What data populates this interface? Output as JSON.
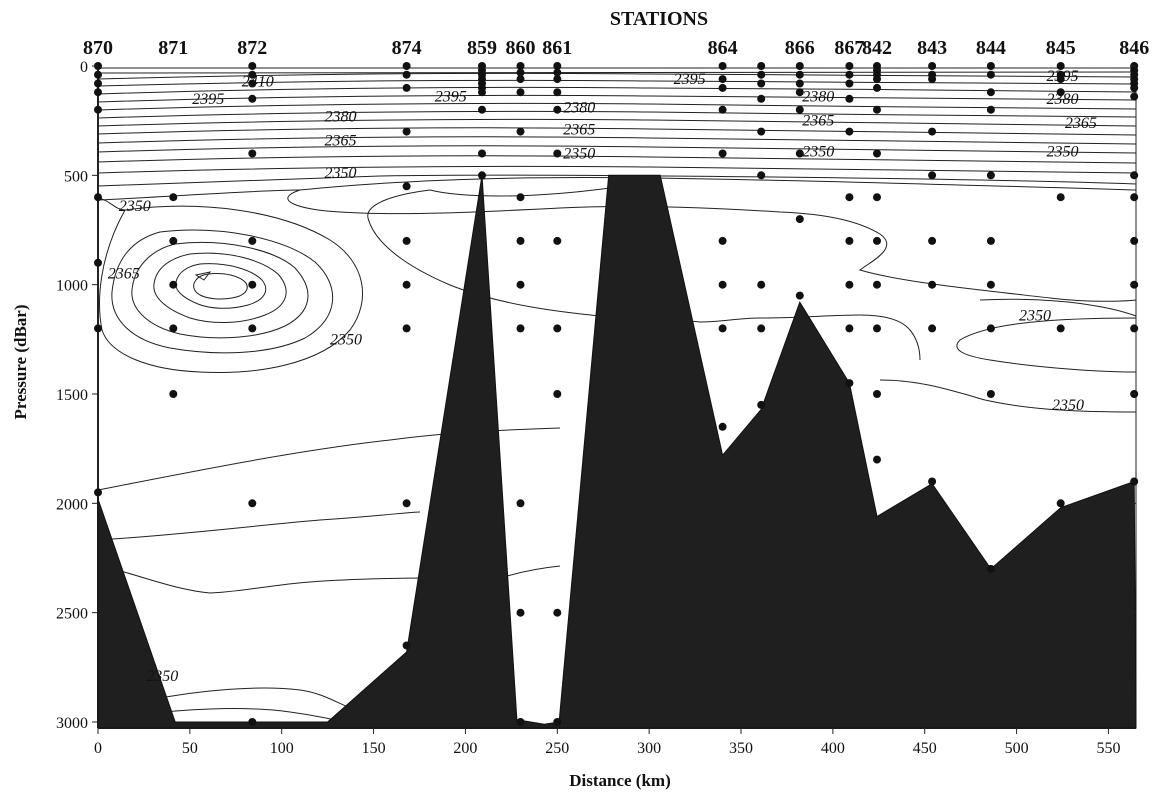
{
  "chart_data": {
    "type": "contour",
    "top_title": "STATIONS",
    "xlabel": "Distance (km)",
    "ylabel": "Pressure (dBar)",
    "xlim": [
      0,
      565
    ],
    "ylim": [
      3000,
      0
    ],
    "x_ticks": [
      0,
      50,
      100,
      150,
      200,
      250,
      300,
      350,
      400,
      450,
      500,
      550
    ],
    "y_ticks": [
      0,
      500,
      1000,
      1500,
      2000,
      2500,
      3000
    ],
    "stations": [
      {
        "name": "870",
        "x": 0
      },
      {
        "name": "871",
        "x": 41
      },
      {
        "name": "872",
        "x": 84
      },
      {
        "name": "874",
        "x": 168
      },
      {
        "name": "859",
        "x": 209
      },
      {
        "name": "860",
        "x": 230
      },
      {
        "name": "861",
        "x": 250
      },
      {
        "name": "864",
        "x": 340
      },
      {
        "name": "866",
        "x": 382
      },
      {
        "name": "867",
        "x": 409
      },
      {
        "name": "842",
        "x": 424
      },
      {
        "name": "843",
        "x": 454
      },
      {
        "name": "844",
        "x": 486
      },
      {
        "name": "845",
        "x": 524
      },
      {
        "name": "846",
        "x": 564
      }
    ],
    "contour_labels": [
      {
        "text": "2410",
        "x": 87,
        "y": 70
      },
      {
        "text": "2395",
        "x": 60,
        "y": 150
      },
      {
        "text": "2395",
        "x": 192,
        "y": 140
      },
      {
        "text": "2395",
        "x": 322,
        "y": 60
      },
      {
        "text": "2395",
        "x": 525,
        "y": 45
      },
      {
        "text": "2380",
        "x": 132,
        "y": 230
      },
      {
        "text": "2380",
        "x": 262,
        "y": 190
      },
      {
        "text": "2380",
        "x": 392,
        "y": 140
      },
      {
        "text": "2380",
        "x": 525,
        "y": 150
      },
      {
        "text": "2365",
        "x": 132,
        "y": 340
      },
      {
        "text": "2365",
        "x": 262,
        "y": 290
      },
      {
        "text": "2365",
        "x": 392,
        "y": 250
      },
      {
        "text": "2365",
        "x": 535,
        "y": 260
      },
      {
        "text": "2350",
        "x": 132,
        "y": 490
      },
      {
        "text": "2350",
        "x": 262,
        "y": 400
      },
      {
        "text": "2350",
        "x": 392,
        "y": 390
      },
      {
        "text": "2350",
        "x": 525,
        "y": 390
      },
      {
        "text": "2350",
        "x": 20,
        "y": 640
      },
      {
        "text": "2365",
        "x": 14,
        "y": 950
      },
      {
        "text": "2350",
        "x": 135,
        "y": 1250
      },
      {
        "text": "2350",
        "x": 510,
        "y": 1140
      },
      {
        "text": "2350",
        "x": 528,
        "y": 1550
      },
      {
        "text": "2350",
        "x": 35,
        "y": 2790
      }
    ],
    "sample_points": [
      [
        0,
        0
      ],
      [
        0,
        40
      ],
      [
        0,
        80
      ],
      [
        0,
        120
      ],
      [
        0,
        200
      ],
      [
        0,
        600
      ],
      [
        0,
        900
      ],
      [
        0,
        1200
      ],
      [
        0,
        1950
      ],
      [
        41,
        600
      ],
      [
        41,
        800
      ],
      [
        41,
        1000
      ],
      [
        41,
        1200
      ],
      [
        41,
        1500
      ],
      [
        84,
        0
      ],
      [
        84,
        40
      ],
      [
        84,
        80
      ],
      [
        84,
        150
      ],
      [
        84,
        400
      ],
      [
        84,
        800
      ],
      [
        84,
        1000
      ],
      [
        84,
        1200
      ],
      [
        84,
        2000
      ],
      [
        84,
        3000
      ],
      [
        168,
        0
      ],
      [
        168,
        40
      ],
      [
        168,
        100
      ],
      [
        168,
        300
      ],
      [
        168,
        550
      ],
      [
        168,
        800
      ],
      [
        168,
        1000
      ],
      [
        168,
        1200
      ],
      [
        168,
        2000
      ],
      [
        168,
        2650
      ],
      [
        209,
        0
      ],
      [
        209,
        20
      ],
      [
        209,
        40
      ],
      [
        209,
        60
      ],
      [
        209,
        80
      ],
      [
        209,
        100
      ],
      [
        209,
        120
      ],
      [
        209,
        200
      ],
      [
        209,
        400
      ],
      [
        209,
        500
      ],
      [
        230,
        0
      ],
      [
        230,
        30
      ],
      [
        230,
        60
      ],
      [
        230,
        120
      ],
      [
        230,
        300
      ],
      [
        230,
        600
      ],
      [
        230,
        800
      ],
      [
        230,
        1000
      ],
      [
        230,
        1200
      ],
      [
        230,
        2000
      ],
      [
        230,
        2500
      ],
      [
        230,
        3000
      ],
      [
        250,
        0
      ],
      [
        250,
        30
      ],
      [
        250,
        60
      ],
      [
        250,
        120
      ],
      [
        250,
        200
      ],
      [
        250,
        400
      ],
      [
        250,
        800
      ],
      [
        250,
        1200
      ],
      [
        250,
        1500
      ],
      [
        250,
        2500
      ],
      [
        250,
        3000
      ],
      [
        340,
        0
      ],
      [
        340,
        60
      ],
      [
        340,
        100
      ],
      [
        340,
        200
      ],
      [
        340,
        400
      ],
      [
        340,
        800
      ],
      [
        340,
        1000
      ],
      [
        340,
        1200
      ],
      [
        340,
        1650
      ],
      [
        361,
        0
      ],
      [
        361,
        40
      ],
      [
        361,
        80
      ],
      [
        361,
        150
      ],
      [
        361,
        300
      ],
      [
        361,
        500
      ],
      [
        361,
        1000
      ],
      [
        361,
        1200
      ],
      [
        361,
        1550
      ],
      [
        382,
        0
      ],
      [
        382,
        40
      ],
      [
        382,
        80
      ],
      [
        382,
        120
      ],
      [
        382,
        200
      ],
      [
        382,
        400
      ],
      [
        382,
        700
      ],
      [
        382,
        1050
      ],
      [
        409,
        0
      ],
      [
        409,
        40
      ],
      [
        409,
        80
      ],
      [
        409,
        150
      ],
      [
        409,
        300
      ],
      [
        409,
        600
      ],
      [
        409,
        800
      ],
      [
        409,
        1000
      ],
      [
        409,
        1200
      ],
      [
        409,
        1450
      ],
      [
        424,
        0
      ],
      [
        424,
        20
      ],
      [
        424,
        40
      ],
      [
        424,
        60
      ],
      [
        424,
        100
      ],
      [
        424,
        200
      ],
      [
        424,
        400
      ],
      [
        424,
        600
      ],
      [
        424,
        800
      ],
      [
        424,
        1000
      ],
      [
        424,
        1200
      ],
      [
        424,
        1500
      ],
      [
        424,
        1800
      ],
      [
        454,
        0
      ],
      [
        454,
        40
      ],
      [
        454,
        60
      ],
      [
        454,
        300
      ],
      [
        454,
        500
      ],
      [
        454,
        800
      ],
      [
        454,
        1000
      ],
      [
        454,
        1200
      ],
      [
        454,
        1900
      ],
      [
        486,
        0
      ],
      [
        486,
        40
      ],
      [
        486,
        120
      ],
      [
        486,
        200
      ],
      [
        486,
        500
      ],
      [
        486,
        800
      ],
      [
        486,
        1000
      ],
      [
        486,
        1200
      ],
      [
        486,
        1500
      ],
      [
        486,
        2300
      ],
      [
        524,
        0
      ],
      [
        524,
        40
      ],
      [
        524,
        60
      ],
      [
        524,
        120
      ],
      [
        524,
        600
      ],
      [
        524,
        1200
      ],
      [
        524,
        2000
      ],
      [
        564,
        0
      ],
      [
        564,
        20
      ],
      [
        564,
        40
      ],
      [
        564,
        60
      ],
      [
        564,
        80
      ],
      [
        564,
        100
      ],
      [
        564,
        140
      ],
      [
        564,
        500
      ],
      [
        564,
        600
      ],
      [
        564,
        800
      ],
      [
        564,
        1000
      ],
      [
        564,
        1200
      ],
      [
        564,
        1500
      ],
      [
        564,
        1900
      ]
    ],
    "bathymetry": [
      [
        0,
        1980
      ],
      [
        42,
        3000
      ],
      [
        125,
        3000
      ],
      [
        168,
        2680
      ],
      [
        209,
        500
      ],
      [
        228,
        2990
      ],
      [
        243,
        3010
      ],
      [
        251,
        3000
      ],
      [
        278,
        500
      ],
      [
        306,
        500
      ],
      [
        340,
        1780
      ],
      [
        361,
        1570
      ],
      [
        382,
        1080
      ],
      [
        409,
        1450
      ],
      [
        424,
        2060
      ],
      [
        454,
        1910
      ],
      [
        486,
        2300
      ],
      [
        524,
        2020
      ],
      [
        564,
        1900
      ]
    ]
  }
}
